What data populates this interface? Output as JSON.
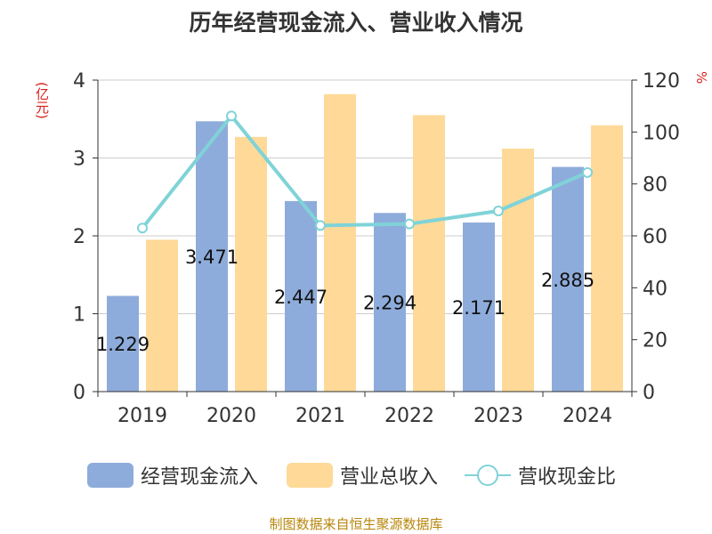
{
  "chart_data": {
    "type": "bar",
    "title": "历年经营现金流入、营业收入情况",
    "categories": [
      "2019",
      "2020",
      "2021",
      "2022",
      "2023",
      "2024"
    ],
    "y_left": {
      "unit": "(亿元)",
      "ylim": [
        0,
        4
      ],
      "ticks": [
        "0",
        "1",
        "2",
        "3",
        "4"
      ]
    },
    "y_right": {
      "unit": "%",
      "ylim": [
        0,
        120
      ],
      "ticks": [
        "0",
        "20",
        "40",
        "60",
        "80",
        "100",
        "120"
      ]
    },
    "series": [
      {
        "name": "经营现金流入",
        "type": "bar",
        "axis": "left",
        "color": "#8eacdb",
        "values": [
          1.229,
          3.471,
          2.447,
          2.294,
          2.171,
          2.885
        ],
        "labels": [
          "1.229",
          "3.471",
          "2.447",
          "2.294",
          "2.171",
          "2.885"
        ]
      },
      {
        "name": "营业总收入",
        "type": "bar",
        "axis": "left",
        "color": "#fed998",
        "values": [
          1.95,
          3.27,
          3.82,
          3.55,
          3.12,
          3.42
        ]
      },
      {
        "name": "营收现金比",
        "type": "line",
        "axis": "right",
        "color": "#7fd3d8",
        "values": [
          63.0,
          106.2,
          64.0,
          64.6,
          69.6,
          84.4
        ]
      }
    ],
    "grid": true,
    "legend_position": "bottom"
  },
  "source": "制图数据来自恒生聚源数据库"
}
